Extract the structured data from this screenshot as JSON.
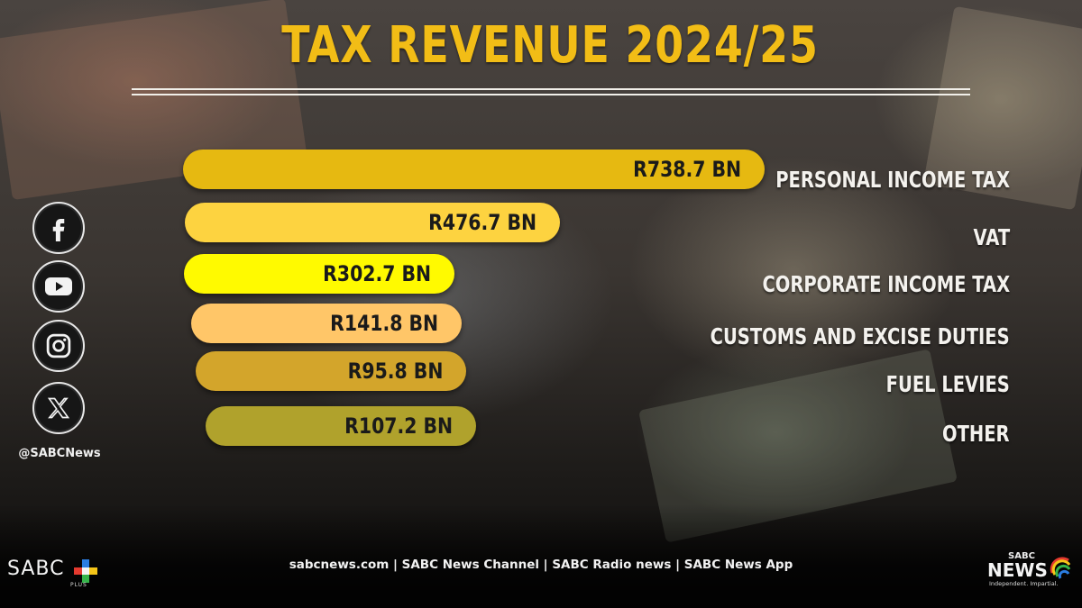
{
  "title": "TAX REVENUE 2024/25",
  "social": {
    "handle": "@SABCNews",
    "icons": [
      "facebook-icon",
      "youtube-icon",
      "instagram-icon",
      "x-icon"
    ]
  },
  "footer": {
    "links": "sabcnews.com | SABC News Channel | SABC Radio news | SABC News App",
    "logo_left": "SABC",
    "logo_left_sub": "PLUS",
    "logo_right_top": "SABC",
    "logo_right_main": "NEWS",
    "logo_right_tag": "Independent. Impartial."
  },
  "colors": {
    "title": "#f2bd16",
    "bars": [
      "#e6b911",
      "#fdd340",
      "#fffa00",
      "#ffc668",
      "#d3a52b",
      "#b0a22c"
    ]
  },
  "chart_data": {
    "type": "bar",
    "orientation": "horizontal",
    "title": "TAX REVENUE 2024/25",
    "unit": "R billion",
    "categories": [
      "PERSONAL INCOME TAX",
      "VAT",
      "CORPORATE INCOME TAX",
      "CUSTOMS AND EXCISE DUTIES",
      "FUEL LEVIES",
      "OTHER"
    ],
    "values": [
      738.7,
      476.7,
      302.7,
      141.8,
      95.8,
      107.2
    ],
    "value_labels": [
      "R738.7 BN",
      "R476.7 BN",
      "R302.7 BN",
      "R141.8 BN",
      "R95.8 BN",
      "R107.2 BN"
    ],
    "grid": false,
    "legend": "none"
  }
}
